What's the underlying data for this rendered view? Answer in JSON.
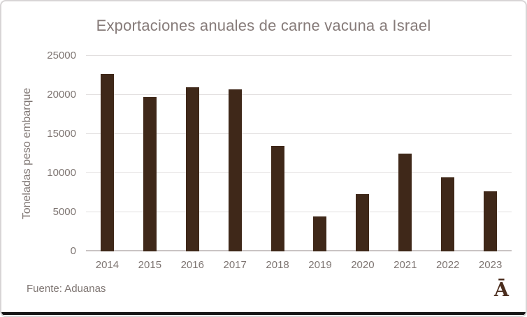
{
  "chart_data": {
    "type": "bar",
    "title": "Exportaciones anuales de carne vacuna a Israel",
    "categories": [
      "2014",
      "2015",
      "2016",
      "2017",
      "2018",
      "2019",
      "2020",
      "2021",
      "2022",
      "2023"
    ],
    "values": [
      22700,
      19700,
      21000,
      20700,
      13500,
      4500,
      7300,
      12500,
      9500,
      7700
    ],
    "xlabel": "",
    "ylabel": "Toneladas peso embarque",
    "ylim": [
      0,
      25000
    ],
    "yticks": [
      0,
      5000,
      10000,
      15000,
      20000,
      25000
    ],
    "grid": true,
    "legend": false,
    "source_note": "Fuente: Aduanas",
    "logo_text": "Ā"
  },
  "colors": {
    "bar": "#3F2819",
    "title_text": "#867B79",
    "axis_text": "#7E7572",
    "gridline": "#E2DFDF",
    "axis_line": "#C9C4C4",
    "border": "#D8D5D6",
    "bottom_edge": "#161616",
    "logo": "#4B2D1E",
    "background": "#FFFFFF"
  }
}
